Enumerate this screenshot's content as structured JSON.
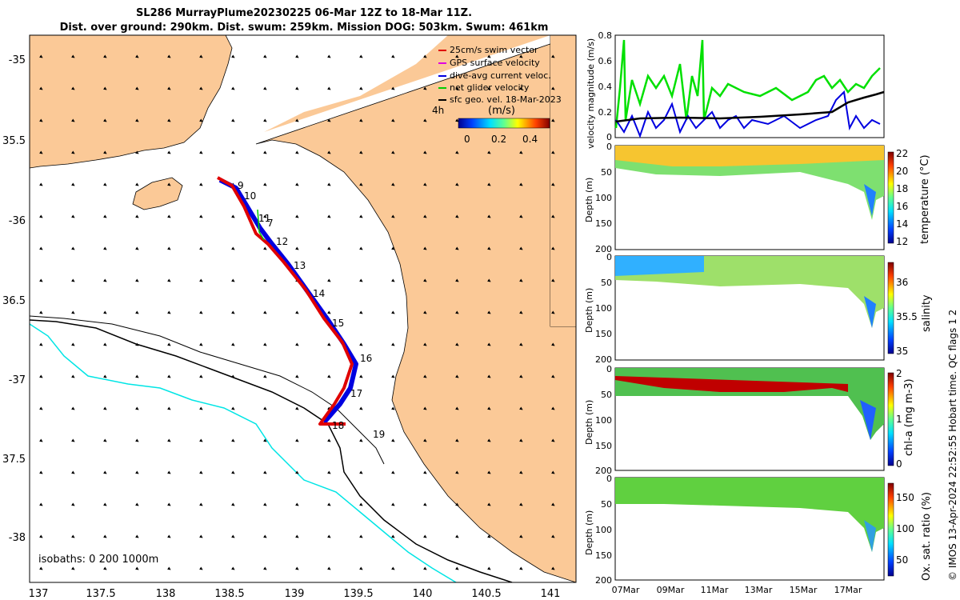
{
  "title": {
    "line1": "SL286 MurrayPlume20230225 06-Mar 12Z to 18-Mar 11Z.",
    "line2": "Dist. over ground: 290km. Dist. swum: 259km. Mission DOG: 503km. Swum: 461km"
  },
  "map": {
    "lon_ticks": [
      "137",
      "137.5",
      "138",
      "138.5",
      "139",
      "139.5",
      "140",
      "140.5",
      "141"
    ],
    "lat_ticks": [
      "-35",
      "35.5",
      "-36",
      "36.5",
      "-37",
      "37.5",
      "-38"
    ],
    "day_labels": [
      "9",
      "10",
      "11",
      "7",
      "12",
      "13",
      "14",
      "15",
      "16",
      "17",
      "18",
      "19"
    ],
    "isobaths_label": "isobaths: 0   200  1000m",
    "legend": [
      {
        "label": "25cm/s swim vector",
        "color": "#e00000"
      },
      {
        "label": "GPS surface velocity",
        "color": "#e000e0"
      },
      {
        "label": "dive-avg current veloc.",
        "color": "#0000e0"
      },
      {
        "label": "net glider velocity",
        "color": "#00cc00"
      },
      {
        "label": "sfc geo. vel. 18-Mar-2023",
        "color": "#000000"
      }
    ],
    "time_label": "4h",
    "colorbar": {
      "unit": "(m/s)",
      "ticks": [
        "0",
        "0.2",
        "0.4"
      ]
    },
    "colors": {
      "land": "#fbc997",
      "sea": "#ffffff",
      "isobath200": "#000000",
      "isobath1000": "#00e5e5",
      "track": "#e00000",
      "current": "#0000e0"
    }
  },
  "panels": {
    "velocity": {
      "ylabel": "velocity magnitude (m/s)",
      "yticks": [
        "0",
        "0.2",
        "0.4",
        "0.6",
        "0.8"
      ]
    },
    "temperature": {
      "ylabel": "Depth (m)",
      "yticks": [
        "0",
        "50",
        "100",
        "150",
        "200"
      ],
      "cbar_label": "temperature (°C)",
      "cbar_ticks": [
        "22",
        "20",
        "18",
        "16",
        "14",
        "12"
      ]
    },
    "salinity": {
      "ylabel": "Depth (m)",
      "yticks": [
        "0",
        "50",
        "100",
        "150",
        "200"
      ],
      "cbar_label": "salinity",
      "cbar_ticks": [
        "36",
        "35.5",
        "35"
      ]
    },
    "chla": {
      "ylabel": "Depth (m)",
      "yticks": [
        "0",
        "50",
        "100",
        "150",
        "200"
      ],
      "cbar_label": "chl-a (mg m-3)",
      "cbar_ticks": [
        "2",
        "1",
        "0"
      ]
    },
    "oxygen": {
      "ylabel": "Depth (m)",
      "yticks": [
        "0",
        "50",
        "100",
        "150",
        "200"
      ],
      "cbar_label": "Ox. sat. ratio (%)",
      "cbar_ticks": [
        "150",
        "100",
        "50"
      ]
    },
    "xticks": [
      "07Mar",
      "09Mar",
      "11Mar",
      "13Mar",
      "15Mar",
      "17Mar"
    ]
  },
  "footer": {
    "credit": "© IMOS 13-Apr-2024 22:52:55 Hobart time. QC flags 1  2"
  }
}
